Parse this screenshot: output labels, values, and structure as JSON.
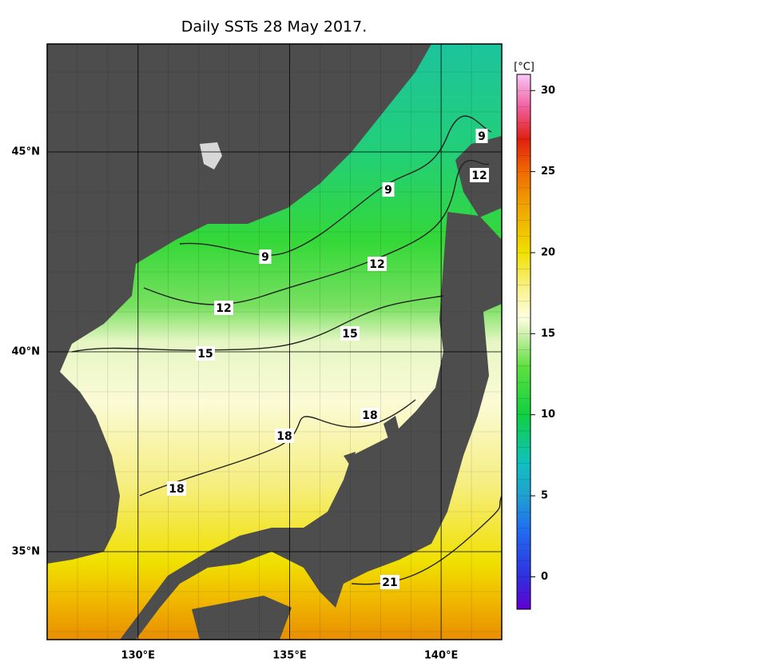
{
  "title": "Daily SSTs 28 May 2017.",
  "map": {
    "xlim": [
      127,
      142
    ],
    "ylim": [
      32.8,
      47.7
    ],
    "xticks": [
      {
        "value": 130,
        "label": "130°E"
      },
      {
        "value": 135,
        "label": "135°E"
      },
      {
        "value": 140,
        "label": "140°E"
      }
    ],
    "yticks": [
      {
        "value": 45,
        "label": "45°N"
      },
      {
        "value": 40,
        "label": "40°N"
      },
      {
        "value": 35,
        "label": "35°N"
      }
    ],
    "contour_labels": [
      "9",
      "12",
      "9",
      "9",
      "12",
      "12",
      "15",
      "15",
      "18",
      "18",
      "18",
      "21"
    ]
  },
  "colorbar": {
    "unit": "[°C]",
    "range": [
      -2,
      31
    ],
    "ticks": [
      0,
      5,
      10,
      15,
      20,
      25,
      30
    ]
  }
}
